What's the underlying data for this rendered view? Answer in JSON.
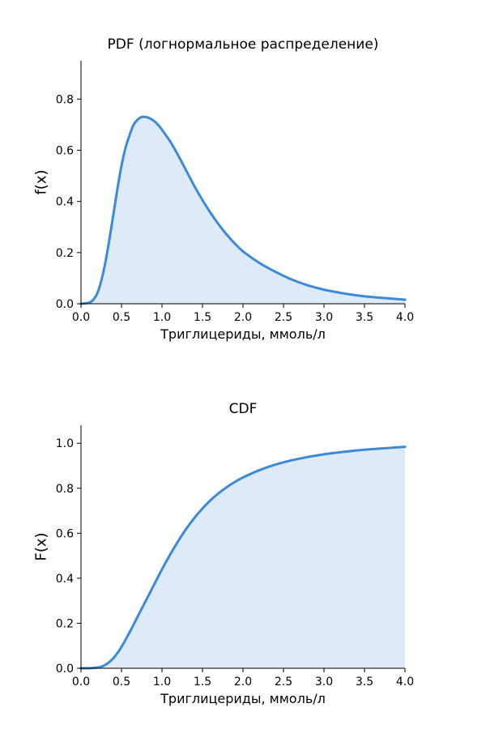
{
  "chart_data": [
    {
      "type": "area",
      "title": "PDF (логнормальное распределение)",
      "xlabel": "Триглицериды, ммоль/л",
      "ylabel": "f(x)",
      "xlim": [
        0,
        4
      ],
      "ylim": [
        0,
        0.95
      ],
      "xticks": [
        "0.0",
        "0.5",
        "1.0",
        "1.5",
        "2.0",
        "2.5",
        "3.0",
        "3.5",
        "4.0"
      ],
      "yticks": [
        "0.0",
        "0.2",
        "0.4",
        "0.6",
        "0.8"
      ],
      "grid": false,
      "series": [
        {
          "color": "#3a8ad9",
          "fill": "#dfeaf7",
          "x": [
            0.0,
            0.1,
            0.15,
            0.2,
            0.25,
            0.3,
            0.35,
            0.4,
            0.45,
            0.5,
            0.55,
            0.6,
            0.65,
            0.7,
            0.75,
            0.8,
            0.85,
            0.9,
            0.95,
            1.0,
            1.1,
            1.2,
            1.3,
            1.4,
            1.5,
            1.6,
            1.7,
            1.8,
            1.9,
            2.0,
            2.2,
            2.4,
            2.6,
            2.8,
            3.0,
            3.2,
            3.4,
            3.6,
            3.8,
            4.0
          ],
          "y": [
            0.0,
            0.004,
            0.015,
            0.04,
            0.09,
            0.16,
            0.25,
            0.35,
            0.45,
            0.54,
            0.61,
            0.66,
            0.7,
            0.72,
            0.73,
            0.73,
            0.725,
            0.715,
            0.7,
            0.68,
            0.635,
            0.58,
            0.52,
            0.46,
            0.405,
            0.355,
            0.31,
            0.27,
            0.235,
            0.205,
            0.16,
            0.125,
            0.095,
            0.072,
            0.055,
            0.043,
            0.033,
            0.026,
            0.021,
            0.016
          ]
        }
      ]
    },
    {
      "type": "area",
      "title": "CDF",
      "xlabel": "Триглицериды, ммоль/л",
      "ylabel": "F(x)",
      "xlim": [
        0,
        4
      ],
      "ylim": [
        0,
        1.08
      ],
      "xticks": [
        "0.0",
        "0.5",
        "1.0",
        "1.5",
        "2.0",
        "2.5",
        "3.0",
        "3.5",
        "4.0"
      ],
      "yticks": [
        "0.0",
        "0.2",
        "0.4",
        "0.6",
        "0.8",
        "1.0"
      ],
      "grid": false,
      "series": [
        {
          "color": "#3a8ad9",
          "fill": "#dfeaf7",
          "x": [
            0.0,
            0.1,
            0.2,
            0.25,
            0.3,
            0.35,
            0.4,
            0.45,
            0.5,
            0.6,
            0.7,
            0.8,
            0.9,
            1.0,
            1.1,
            1.2,
            1.3,
            1.4,
            1.5,
            1.6,
            1.7,
            1.8,
            1.9,
            2.0,
            2.2,
            2.4,
            2.6,
            2.8,
            3.0,
            3.2,
            3.4,
            3.6,
            3.8,
            4.0
          ],
          "y": [
            0.0,
            0.0,
            0.003,
            0.007,
            0.015,
            0.028,
            0.045,
            0.068,
            0.095,
            0.16,
            0.23,
            0.3,
            0.37,
            0.44,
            0.505,
            0.565,
            0.62,
            0.668,
            0.71,
            0.747,
            0.778,
            0.805,
            0.828,
            0.848,
            0.88,
            0.905,
            0.924,
            0.939,
            0.951,
            0.96,
            0.968,
            0.974,
            0.979,
            0.984
          ]
        }
      ]
    }
  ]
}
